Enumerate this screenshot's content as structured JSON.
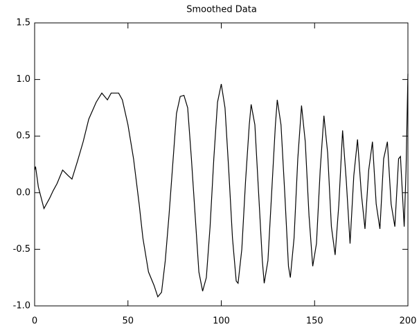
{
  "chart_data": {
    "type": "line",
    "title": "Smoothed Data",
    "x": [
      0,
      0.5,
      2,
      5,
      8,
      10,
      12,
      15,
      18,
      20,
      23,
      26,
      29,
      33,
      36,
      39,
      41,
      45,
      47,
      50,
      53,
      56,
      58,
      61,
      64,
      66,
      68,
      70,
      72,
      74,
      76,
      78,
      80,
      82,
      84,
      86,
      88,
      90,
      92,
      94,
      96,
      98,
      100,
      102,
      104,
      106,
      108,
      109,
      111,
      113,
      115,
      116,
      118,
      120,
      122,
      123,
      125,
      127,
      129,
      130,
      132,
      134,
      136,
      137,
      139,
      141,
      143,
      145,
      147,
      149,
      151,
      153,
      155,
      157,
      159,
      161,
      163,
      165,
      167,
      169,
      171,
      173,
      175,
      177,
      179,
      181,
      183,
      185,
      187,
      189,
      191,
      193,
      195,
      196,
      198,
      199,
      200
    ],
    "series": [
      {
        "color": "#000000",
        "values": [
          0.2,
          0.23,
          0.05,
          -0.14,
          -0.05,
          0.02,
          0.08,
          0.2,
          0.15,
          0.12,
          0.28,
          0.45,
          0.65,
          0.8,
          0.88,
          0.82,
          0.88,
          0.88,
          0.82,
          0.6,
          0.3,
          -0.1,
          -0.4,
          -0.7,
          -0.82,
          -0.92,
          -0.88,
          -0.6,
          -0.2,
          0.25,
          0.7,
          0.85,
          0.86,
          0.75,
          0.3,
          -0.2,
          -0.7,
          -0.87,
          -0.75,
          -0.3,
          0.3,
          0.8,
          0.96,
          0.75,
          0.2,
          -0.4,
          -0.78,
          -0.8,
          -0.5,
          0.1,
          0.6,
          0.78,
          0.6,
          0.0,
          -0.6,
          -0.8,
          -0.6,
          0.0,
          0.6,
          0.82,
          0.6,
          0.0,
          -0.65,
          -0.75,
          -0.4,
          0.3,
          0.77,
          0.45,
          -0.2,
          -0.65,
          -0.45,
          0.2,
          0.68,
          0.35,
          -0.3,
          -0.55,
          -0.1,
          0.55,
          0.1,
          -0.45,
          0.15,
          0.47,
          0.0,
          -0.32,
          0.2,
          0.45,
          -0.1,
          -0.32,
          0.3,
          0.45,
          -0.1,
          -0.3,
          0.3,
          0.32,
          -0.3,
          0.2,
          1.05
        ]
      }
    ],
    "xlim": [
      0,
      200
    ],
    "xticks": [
      0,
      50,
      100,
      150,
      200
    ],
    "ylim": [
      -1,
      1.5
    ],
    "yticks": [
      {
        "value": -1,
        "label": "-1.0"
      },
      -0.5,
      {
        "value": 0,
        "label": "0.0"
      },
      0.5,
      {
        "value": 1,
        "label": "1.0"
      },
      1.5
    ]
  }
}
